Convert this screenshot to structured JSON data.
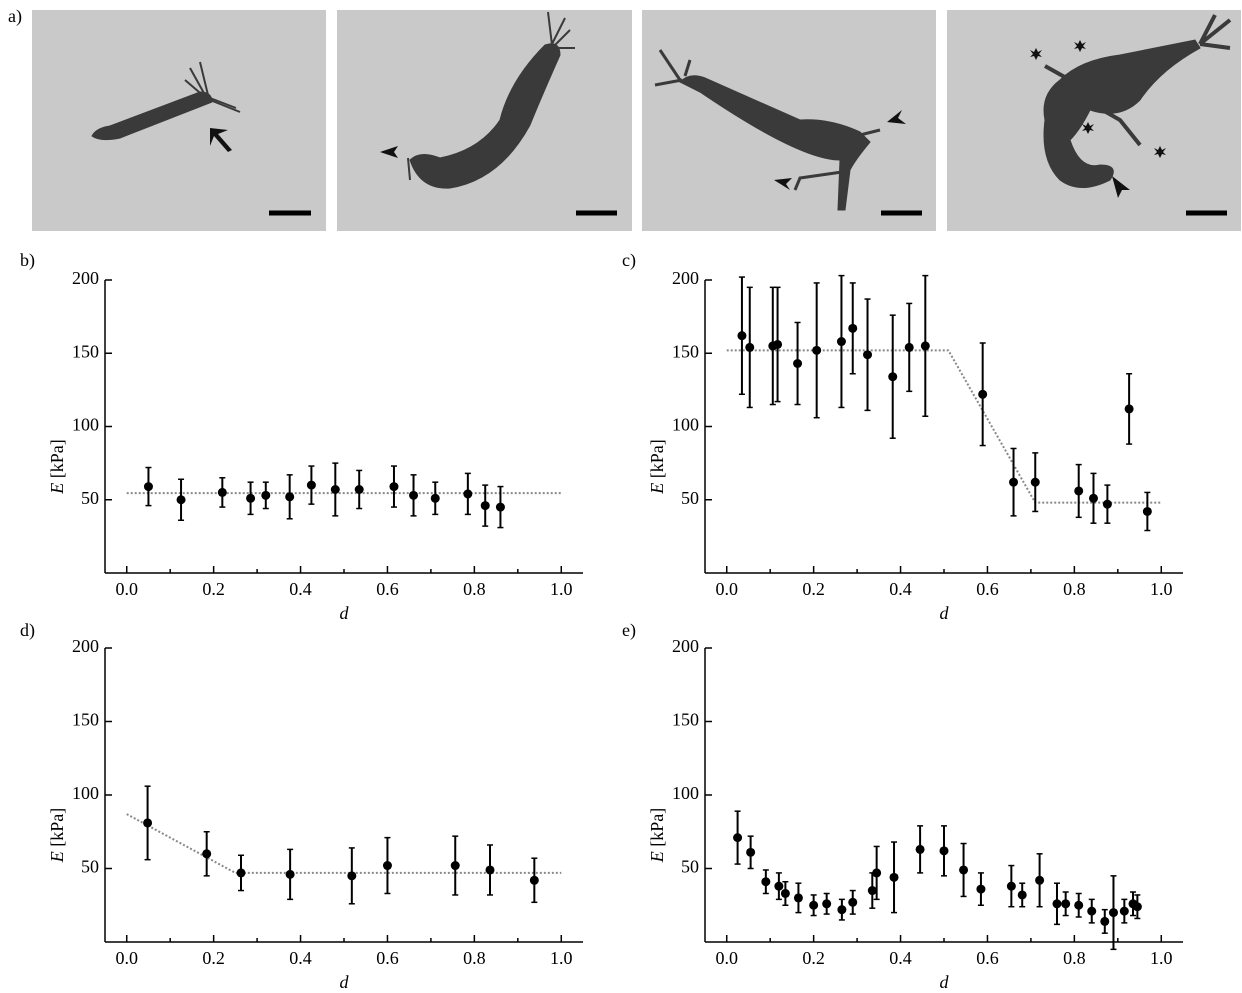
{
  "figure_label": "a)",
  "chart_data": [
    {
      "type": "scatter",
      "panel": "b)",
      "xlabel": "d",
      "ylabel": [
        "E",
        "[kPa]"
      ],
      "xlim": [
        -0.05,
        1.05
      ],
      "ylim": [
        0,
        200
      ],
      "xticks": [
        {
          "value": 0,
          "label": "0.0"
        },
        {
          "value": 0.2,
          "label": "0.2"
        },
        {
          "value": 0.4,
          "label": "0.4"
        },
        {
          "value": 0.6,
          "label": "0.6"
        },
        {
          "value": 0.8,
          "label": "0.8"
        },
        {
          "value": 1,
          "label": "1.0"
        }
      ],
      "xticks_minor": [
        0.1,
        0.3,
        0.5,
        0.7,
        0.9
      ],
      "yticks": [
        50,
        100,
        150,
        200
      ],
      "x": [
        0.05,
        0.125,
        0.22,
        0.285,
        0.32,
        0.375,
        0.425,
        0.48,
        0.535,
        0.615,
        0.66,
        0.71,
        0.785,
        0.825,
        0.86
      ],
      "values": [
        59,
        50,
        55,
        51,
        53,
        52,
        60,
        57,
        57,
        59,
        53,
        51,
        54,
        46,
        45
      ],
      "errors": [
        13,
        14,
        10,
        11,
        9,
        15,
        13,
        18,
        13,
        14,
        14,
        11,
        14,
        14,
        14
      ],
      "fit": {
        "x": [
          0,
          1
        ],
        "y": [
          54.5,
          54.5
        ]
      },
      "color": "#000000",
      "fit_color": "#888888"
    },
    {
      "type": "scatter",
      "panel": "c)",
      "xlabel": "d",
      "ylabel": [
        "E",
        "[kPa]"
      ],
      "xlim": [
        -0.05,
        1.05
      ],
      "ylim": [
        0,
        200
      ],
      "xticks": [
        {
          "value": 0,
          "label": "0.0"
        },
        {
          "value": 0.2,
          "label": "0.2"
        },
        {
          "value": 0.4,
          "label": "0.4"
        },
        {
          "value": 0.6,
          "label": "0.6"
        },
        {
          "value": 0.8,
          "label": "0.8"
        },
        {
          "value": 1,
          "label": "1.0"
        }
      ],
      "xticks_minor": [
        0.1,
        0.3,
        0.5,
        0.7,
        0.9
      ],
      "yticks": [
        50,
        100,
        150,
        200
      ],
      "x": [
        0.035,
        0.053,
        0.106,
        0.117,
        0.163,
        0.207,
        0.264,
        0.29,
        0.324,
        0.382,
        0.42,
        0.457,
        0.589,
        0.66,
        0.71,
        0.81,
        0.844,
        0.876,
        0.926,
        0.968
      ],
      "values": [
        162,
        154,
        155,
        156,
        143,
        152,
        158,
        167,
        149,
        134,
        154,
        155,
        122,
        62,
        62,
        56,
        51,
        47,
        112,
        42
      ],
      "errors": [
        40,
        41,
        40,
        39,
        28,
        46,
        45,
        31,
        38,
        42,
        30,
        48,
        35,
        23,
        20,
        18,
        17,
        13,
        24,
        13
      ],
      "fit": {
        "x": [
          0,
          0.51,
          0.71,
          1
        ],
        "y": [
          152,
          152,
          48,
          48
        ]
      },
      "color": "#000000",
      "fit_color": "#888888"
    },
    {
      "type": "scatter",
      "panel": "d)",
      "xlabel": "d",
      "ylabel": [
        "E",
        "[kPa]"
      ],
      "xlim": [
        -0.05,
        1.05
      ],
      "ylim": [
        0,
        200
      ],
      "xticks": [
        {
          "value": 0,
          "label": "0.0"
        },
        {
          "value": 0.2,
          "label": "0.2"
        },
        {
          "value": 0.4,
          "label": "0.4"
        },
        {
          "value": 0.6,
          "label": "0.6"
        },
        {
          "value": 0.8,
          "label": "0.8"
        },
        {
          "value": 1,
          "label": "1.0"
        }
      ],
      "xticks_minor": [
        0.1,
        0.3,
        0.5,
        0.7,
        0.9
      ],
      "yticks": [
        50,
        100,
        150,
        200
      ],
      "x": [
        0.048,
        0.184,
        0.263,
        0.376,
        0.518,
        0.6,
        0.756,
        0.836,
        0.938
      ],
      "values": [
        81,
        60,
        47,
        46,
        45,
        52,
        52,
        49,
        42
      ],
      "errors": [
        25,
        15,
        12,
        17,
        19,
        19,
        20,
        17,
        15
      ],
      "fit": {
        "x": [
          0,
          0.25,
          1
        ],
        "y": [
          87,
          47,
          47
        ]
      },
      "color": "#000000",
      "fit_color": "#888888"
    },
    {
      "type": "scatter",
      "panel": "e)",
      "xlabel": "d",
      "ylabel": [
        "E",
        "[kPa]"
      ],
      "xlim": [
        -0.05,
        1.05
      ],
      "ylim": [
        0,
        200
      ],
      "xticks": [
        {
          "value": 0,
          "label": "0.0"
        },
        {
          "value": 0.2,
          "label": "0.2"
        },
        {
          "value": 0.4,
          "label": "0.4"
        },
        {
          "value": 0.6,
          "label": "0.6"
        },
        {
          "value": 0.8,
          "label": "0.8"
        },
        {
          "value": 1,
          "label": "1.0"
        }
      ],
      "xticks_minor": [
        0.1,
        0.3,
        0.5,
        0.7,
        0.9
      ],
      "yticks": [
        50,
        100,
        150,
        200
      ],
      "x": [
        0.025,
        0.055,
        0.09,
        0.12,
        0.135,
        0.165,
        0.2,
        0.23,
        0.265,
        0.29,
        0.335,
        0.345,
        0.385,
        0.445,
        0.5,
        0.545,
        0.585,
        0.655,
        0.68,
        0.72,
        0.76,
        0.78,
        0.81,
        0.84,
        0.87,
        0.89,
        0.915,
        0.935,
        0.945
      ],
      "values": [
        71,
        61,
        41,
        38,
        33,
        30,
        25,
        26,
        22,
        27,
        35,
        47,
        44,
        63,
        62,
        49,
        36,
        38,
        32,
        42,
        26,
        26,
        25,
        21,
        14,
        20,
        21,
        26,
        24
      ],
      "errors": [
        18,
        11,
        8,
        9,
        8,
        10,
        7,
        7,
        7,
        8,
        12,
        18,
        24,
        16,
        17,
        18,
        11,
        14,
        8,
        18,
        14,
        8,
        8,
        8,
        8,
        25,
        8,
        8,
        8
      ],
      "color": "#000000"
    }
  ]
}
